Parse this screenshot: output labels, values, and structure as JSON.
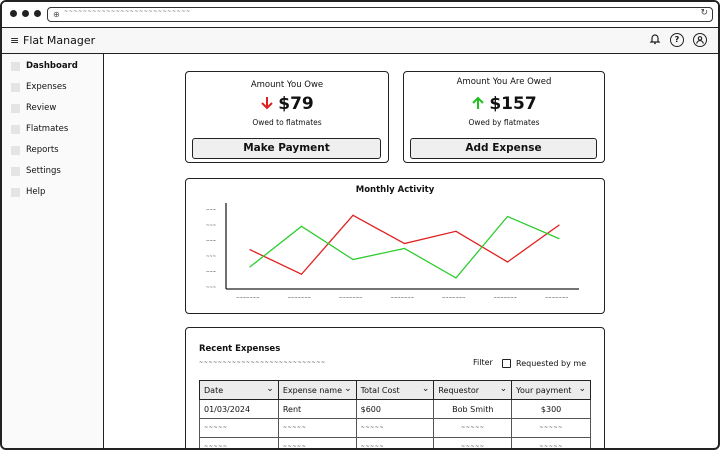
{
  "browser": {
    "address_text": "~~~~~~~~~~~~~~~~~~~~~~~~~~~",
    "lock_icon": "lock-icon",
    "reload_icon": "reload-icon"
  },
  "header": {
    "menu_icon": "≡",
    "title": "Flat Manager",
    "bell_icon": "bell-icon",
    "help_icon": "?",
    "user_icon": "user-icon"
  },
  "sidebar": {
    "items": [
      {
        "label": "Dashboard",
        "active": true
      },
      {
        "label": "Expenses"
      },
      {
        "label": "Review"
      },
      {
        "label": "Flatmates"
      },
      {
        "label": "Reports"
      },
      {
        "label": "Settings"
      },
      {
        "label": "Help"
      }
    ]
  },
  "owe_card": {
    "title": "Amount You Owe",
    "arrow": "🡓",
    "amount": "$79",
    "subtitle": "Owed to flatmates",
    "button": "Make Payment",
    "accent": "#e02020"
  },
  "owed_card": {
    "title": "Amount You Are Owed",
    "arrow": "🡑",
    "amount": "$157",
    "subtitle": "Owed by flatmates",
    "button": "Add Expense",
    "accent": "#20c020"
  },
  "activity": {
    "title": "Monthly Activity",
    "y_tick_label": "~~~",
    "x_tick_label": "~~~~~~~"
  },
  "chart_data": {
    "type": "line",
    "title": "Monthly Activity",
    "xlabel": "",
    "ylabel": "",
    "x": [
      1,
      2,
      3,
      4,
      5,
      6,
      7
    ],
    "series": [
      {
        "color": "#e02020",
        "values": [
          32,
          12,
          60,
          37,
          47,
          22,
          52
        ]
      },
      {
        "color": "#30cc30",
        "values": [
          18,
          51,
          24,
          33,
          9,
          59,
          41
        ]
      }
    ],
    "ylim": [
      0,
      70
    ],
    "grid": false
  },
  "recent": {
    "title": "Recent Expenses",
    "description": "~~~~~~~~~~~~~~~~~~~~~~~~~~~",
    "filter_label": "Filter",
    "checkbox_label": "Requested by me",
    "columns": [
      "Date",
      "Expense name",
      "Total Cost",
      "Requestor",
      "Your payment"
    ],
    "rows": [
      [
        "01/03/2024",
        "Rent",
        "$600",
        "Bob Smith",
        "$300"
      ],
      [
        "~~~~~",
        "~~~~~",
        "~~~~~",
        "~~~~~",
        "~~~~~"
      ],
      [
        "~~~~~",
        "~~~~~",
        "~~~~~",
        "~~~~~",
        "~~~~~"
      ]
    ]
  }
}
